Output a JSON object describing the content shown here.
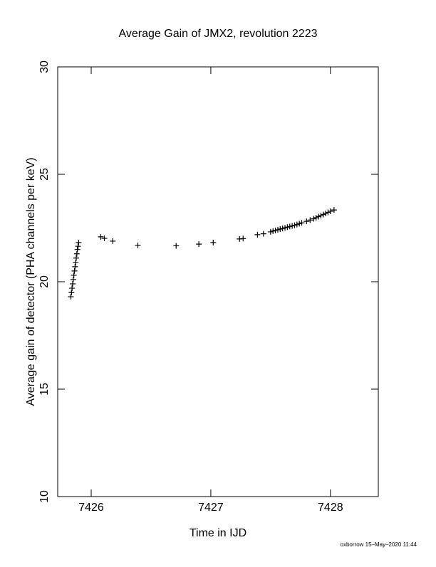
{
  "chart_data": {
    "type": "scatter",
    "title": "Average Gain of JMX2, revolution 2223",
    "x_label": "Time in IJD",
    "y_label": "Average gain of detector (PHA channels per keV)",
    "footer": "oxborrow 15–May–2020 11:44",
    "color": "#000000",
    "xlim": [
      7425.72,
      7428.4
    ],
    "xticks": [
      7426,
      7427,
      7428
    ],
    "ylim": [
      10,
      30
    ],
    "yticks": [
      10,
      15,
      20,
      25,
      30
    ],
    "series": [
      {
        "name": "gain",
        "x": [
          7425.83,
          7425.835,
          7425.84,
          7425.845,
          7425.85,
          7425.855,
          7425.86,
          7425.865,
          7425.87,
          7425.875,
          7425.88,
          7425.885,
          7425.89,
          7425.895,
          7426.08,
          7426.11,
          7426.18,
          7426.39,
          7426.71,
          7426.9,
          7427.02,
          7427.24,
          7427.27,
          7427.39,
          7427.44,
          7427.5,
          7427.52,
          7427.54,
          7427.56,
          7427.58,
          7427.6,
          7427.62,
          7427.64,
          7427.66,
          7427.68,
          7427.7,
          7427.72,
          7427.74,
          7427.76,
          7427.8,
          7427.83,
          7427.86,
          7427.88,
          7427.9,
          7427.92,
          7427.94,
          7427.96,
          7427.98,
          7428.0,
          7428.03
        ],
        "y": [
          19.3,
          19.5,
          19.7,
          19.9,
          20.1,
          20.3,
          20.5,
          20.7,
          20.9,
          21.1,
          21.3,
          21.5,
          21.65,
          21.82,
          22.09,
          22.02,
          21.89,
          21.69,
          21.67,
          21.75,
          21.82,
          21.99,
          22.01,
          22.19,
          22.23,
          22.32,
          22.36,
          22.39,
          22.42,
          22.45,
          22.48,
          22.51,
          22.54,
          22.57,
          22.6,
          22.63,
          22.66,
          22.7,
          22.74,
          22.81,
          22.87,
          22.93,
          22.98,
          23.03,
          23.08,
          23.13,
          23.18,
          23.23,
          23.28,
          23.34
        ]
      }
    ]
  }
}
